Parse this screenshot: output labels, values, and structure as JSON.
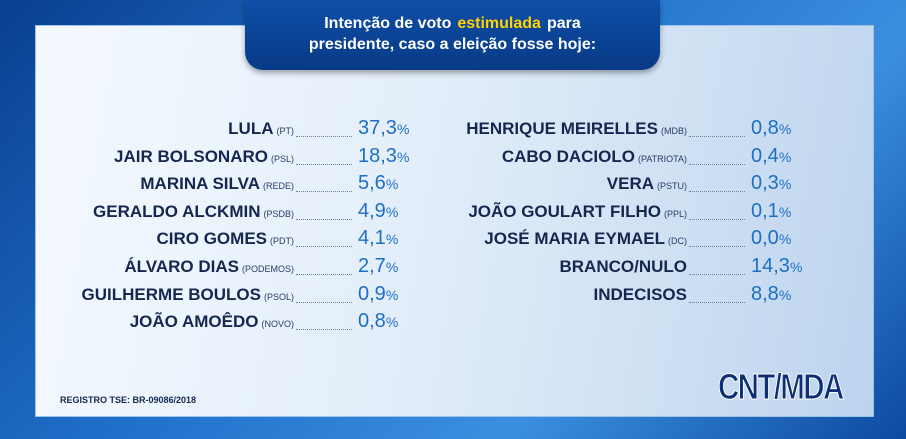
{
  "title": {
    "line1": [
      "Intenção de voto",
      "estimulada",
      "para"
    ],
    "line2": "presidente, caso a eleição fosse hoje:"
  },
  "unit": "%",
  "left": [
    {
      "name": "LULA",
      "party": "(PT)",
      "value": 37.3,
      "label": "37,3"
    },
    {
      "name": "JAIR BOLSONARO",
      "party": "(PSL)",
      "value": 18.3,
      "label": "18,3"
    },
    {
      "name": "MARINA SILVA",
      "party": "(REDE)",
      "value": 5.6,
      "label": "5,6"
    },
    {
      "name": "GERALDO ALCKMIN",
      "party": "(PSDB)",
      "value": 4.9,
      "label": "4,9"
    },
    {
      "name": "CIRO GOMES",
      "party": "(PDT)",
      "value": 4.1,
      "label": "4,1"
    },
    {
      "name": "ÁLVARO DIAS",
      "party": "(PODEMOS)",
      "value": 2.7,
      "label": "2,7"
    },
    {
      "name": "GUILHERME BOULOS",
      "party": "(PSOL)",
      "value": 0.9,
      "label": "0,9"
    },
    {
      "name": "JOÃO AMOÊDO",
      "party": "(NOVO)",
      "value": 0.8,
      "label": "0,8"
    }
  ],
  "right": [
    {
      "name": "HENRIQUE MEIRELLES",
      "party": "(MDB)",
      "value": 0.8,
      "label": "0,8"
    },
    {
      "name": "CABO DACIOLO",
      "party": "(PATRIOTA)",
      "value": 0.4,
      "label": "0,4"
    },
    {
      "name": "VERA",
      "party": "(PSTU)",
      "value": 0.3,
      "label": "0,3"
    },
    {
      "name": "JOÃO GOULART FILHO",
      "party": "(PPL)",
      "value": 0.1,
      "label": "0,1"
    },
    {
      "name": "JOSÉ MARIA EYMAEL",
      "party": "(DC)",
      "value": 0.0,
      "label": "0,0"
    },
    {
      "name": "BRANCO/NULO",
      "value": 14.3,
      "label": "14,3"
    },
    {
      "name": "INDECISOS",
      "value": 8.8,
      "label": "8,8"
    }
  ],
  "footer": {
    "registro": "REGISTRO TSE: BR-09086/2018",
    "logo": "CNT/MDA"
  }
}
